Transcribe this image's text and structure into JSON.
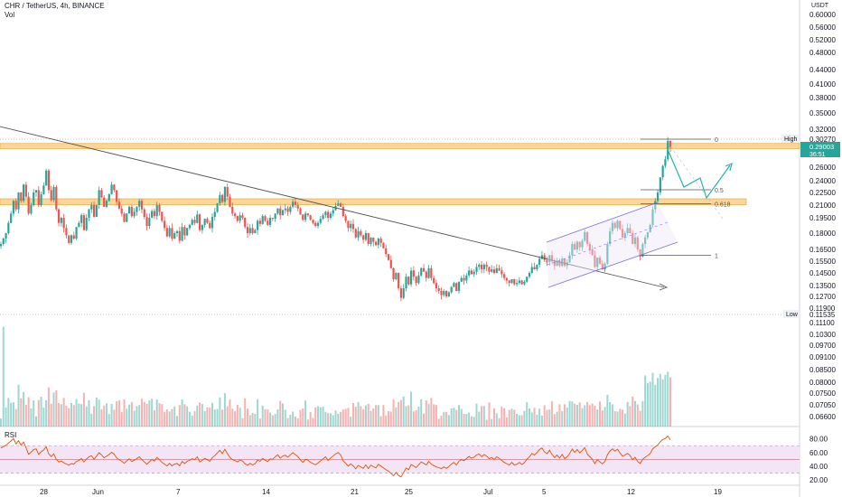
{
  "header": {
    "symbol_line": "CHR / TetherUS, 4h, BINANCE",
    "vol_label": "Vol",
    "rsi_label": "RSI"
  },
  "colors": {
    "up": "#26a69a",
    "down": "#ef5350",
    "zone": "#f7c879",
    "zone_border": "#f0a93a",
    "current_price_bg": "#26a69a",
    "rsi_line": "#e65100",
    "rsi_band": "#f3e5f5",
    "channel": "#7e6ce6",
    "projection": "#26b5a6"
  },
  "chart_data": {
    "type": "candlestick",
    "price_axis": {
      "currency": "USDT",
      "ticks": [
        "0.60000",
        "0.56000",
        "0.52000",
        "0.48000",
        "0.44000",
        "0.41000",
        "0.38000",
        "0.35000",
        "0.32000",
        "0.30270",
        "0.29003",
        "0.26000",
        "0.24000",
        "0.22500",
        "0.21000",
        "0.19500",
        "0.18000",
        "0.16500",
        "0.15500",
        "0.14500",
        "0.13500",
        "0.12700",
        "0.11900",
        "0.11535",
        "0.11100",
        "0.10300",
        "0.09700",
        "0.09100",
        "0.08500",
        "0.08000",
        "0.07500",
        "0.07050",
        "0.06600"
      ],
      "high_label": "High",
      "high_value": "0.30270",
      "low_label": "Low",
      "low_value": "0.11535",
      "current_price": "0.29003",
      "countdown": "36:51"
    },
    "time_axis": [
      "28",
      "Jun",
      "7",
      "14",
      "21",
      "25",
      "Jul",
      "5",
      "12",
      "19"
    ],
    "fib_levels": [
      {
        "label": "0",
        "price": 0.3027
      },
      {
        "label": "0.5",
        "price": 0.2285
      },
      {
        "label": "0.618",
        "price": 0.2115
      },
      {
        "label": "1",
        "price": 0.16
      }
    ],
    "resistance_zones": [
      {
        "from": 0.288,
        "to": 0.296
      },
      {
        "from": 0.2105,
        "to": 0.2175
      }
    ],
    "rsi_axis": [
      "80.00",
      "60.00",
      "40.00",
      "20.00"
    ],
    "rsi_levels": {
      "upper": 70,
      "middle": 50,
      "lower": 30
    },
    "rsi_range": [
      15,
      90
    ],
    "closes": [
      0.17,
      0.175,
      0.18,
      0.19,
      0.2,
      0.215,
      0.205,
      0.225,
      0.215,
      0.235,
      0.22,
      0.2,
      0.21,
      0.225,
      0.228,
      0.21,
      0.223,
      0.234,
      0.255,
      0.228,
      0.216,
      0.232,
      0.205,
      0.19,
      0.195,
      0.185,
      0.178,
      0.171,
      0.178,
      0.175,
      0.186,
      0.19,
      0.198,
      0.183,
      0.195,
      0.205,
      0.21,
      0.196,
      0.21,
      0.228,
      0.219,
      0.208,
      0.215,
      0.223,
      0.235,
      0.228,
      0.214,
      0.206,
      0.2,
      0.191,
      0.2,
      0.208,
      0.197,
      0.202,
      0.208,
      0.215,
      0.205,
      0.196,
      0.187,
      0.195,
      0.203,
      0.197,
      0.21,
      0.202,
      0.192,
      0.185,
      0.177,
      0.185,
      0.175,
      0.18,
      0.182,
      0.173,
      0.186,
      0.178,
      0.185,
      0.188,
      0.193,
      0.19,
      0.199,
      0.183,
      0.188,
      0.194,
      0.19,
      0.185,
      0.196,
      0.202,
      0.212,
      0.222,
      0.214,
      0.232,
      0.22,
      0.208,
      0.2,
      0.197,
      0.192,
      0.198,
      0.195,
      0.186,
      0.18,
      0.185,
      0.18,
      0.183,
      0.192,
      0.189,
      0.197,
      0.192,
      0.188,
      0.195,
      0.194,
      0.2,
      0.206,
      0.198,
      0.204,
      0.206,
      0.202,
      0.208,
      0.214,
      0.21,
      0.206,
      0.199,
      0.193,
      0.2,
      0.198,
      0.193,
      0.19,
      0.187,
      0.19,
      0.194,
      0.198,
      0.202,
      0.195,
      0.2,
      0.204,
      0.209,
      0.212,
      0.208,
      0.197,
      0.192,
      0.185,
      0.189,
      0.184,
      0.176,
      0.182,
      0.178,
      0.174,
      0.18,
      0.17,
      0.176,
      0.172,
      0.169,
      0.175,
      0.171,
      0.166,
      0.161,
      0.156,
      0.149,
      0.14,
      0.145,
      0.133,
      0.126,
      0.133,
      0.142,
      0.136,
      0.147,
      0.142,
      0.137,
      0.143,
      0.149,
      0.146,
      0.141,
      0.149,
      0.141,
      0.137,
      0.133,
      0.131,
      0.128,
      0.131,
      0.127,
      0.13,
      0.134,
      0.137,
      0.131,
      0.138,
      0.141,
      0.139,
      0.143,
      0.147,
      0.144,
      0.146,
      0.15,
      0.152,
      0.148,
      0.152,
      0.15,
      0.146,
      0.148,
      0.145,
      0.149,
      0.147,
      0.144,
      0.141,
      0.139,
      0.137,
      0.14,
      0.136,
      0.137,
      0.139,
      0.136,
      0.138,
      0.142,
      0.145,
      0.15,
      0.148,
      0.152,
      0.157,
      0.16,
      0.156,
      0.154,
      0.16,
      0.155,
      0.151,
      0.155,
      0.151,
      0.157,
      0.151,
      0.154,
      0.16,
      0.17,
      0.165,
      0.172,
      0.167,
      0.173,
      0.181,
      0.17,
      0.165,
      0.16,
      0.15,
      0.158,
      0.153,
      0.148,
      0.153,
      0.17,
      0.182,
      0.19,
      0.185,
      0.192,
      0.184,
      0.176,
      0.18,
      0.185,
      0.18,
      0.17,
      0.176,
      0.165,
      0.159,
      0.17,
      0.176,
      0.181,
      0.188,
      0.205,
      0.215,
      0.225,
      0.245,
      0.262,
      0.272,
      0.3,
      0.29
    ]
  }
}
